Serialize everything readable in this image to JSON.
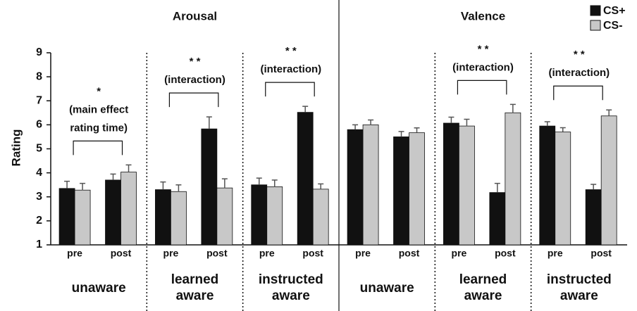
{
  "chart_data": {
    "type": "bar",
    "y_label": "Rating",
    "ylim": [
      1,
      9
    ],
    "yticks": [
      1,
      2,
      3,
      4,
      5,
      6,
      7,
      8,
      9
    ],
    "categories": [
      "pre",
      "post"
    ],
    "series": [
      {
        "name": "CS+",
        "color": "#111111"
      },
      {
        "name": "CS-",
        "color": "#c8c8c8"
      }
    ],
    "sections": [
      {
        "title": "Arousal",
        "panels": [
          {
            "group_label": [
              "unaware"
            ],
            "annotation": [
              "*",
              "(main effect",
              "rating time)"
            ],
            "series": [
              {
                "values": [
                  3.35,
                  3.7
                ],
                "errors": [
                  0.3,
                  0.25
                ]
              },
              {
                "values": [
                  3.28,
                  4.03
                ],
                "errors": [
                  0.28,
                  0.3
                ]
              }
            ]
          },
          {
            "group_label": [
              "learned",
              "aware"
            ],
            "annotation": [
              "* *",
              "(interaction)"
            ],
            "series": [
              {
                "values": [
                  3.3,
                  5.83
                ],
                "errors": [
                  0.32,
                  0.5
                ]
              },
              {
                "values": [
                  3.22,
                  3.37
                ],
                "errors": [
                  0.28,
                  0.38
                ]
              }
            ]
          },
          {
            "group_label": [
              "instructed",
              "aware"
            ],
            "annotation": [
              "* *",
              "(interaction)"
            ],
            "series": [
              {
                "values": [
                  3.5,
                  6.52
                ],
                "errors": [
                  0.28,
                  0.25
                ]
              },
              {
                "values": [
                  3.42,
                  3.32
                ],
                "errors": [
                  0.28,
                  0.22
                ]
              }
            ]
          }
        ]
      },
      {
        "title": "Valence",
        "panels": [
          {
            "group_label": [
              "unaware"
            ],
            "annotation": [],
            "series": [
              {
                "values": [
                  5.8,
                  5.5
                ],
                "errors": [
                  0.2,
                  0.22
                ]
              },
              {
                "values": [
                  6.0,
                  5.67
                ],
                "errors": [
                  0.2,
                  0.2
                ]
              }
            ]
          },
          {
            "group_label": [
              "learned",
              "aware"
            ],
            "annotation": [
              "* *",
              "(interaction)"
            ],
            "series": [
              {
                "values": [
                  6.07,
                  3.18
                ],
                "errors": [
                  0.25,
                  0.38
                ]
              },
              {
                "values": [
                  5.95,
                  6.5
                ],
                "errors": [
                  0.28,
                  0.35
                ]
              }
            ]
          },
          {
            "group_label": [
              "instructed",
              "aware"
            ],
            "annotation": [
              "* *",
              "(interaction)"
            ],
            "series": [
              {
                "values": [
                  5.95,
                  3.3
                ],
                "errors": [
                  0.18,
                  0.22
                ]
              },
              {
                "values": [
                  5.7,
                  6.37
                ],
                "errors": [
                  0.18,
                  0.25
                ]
              }
            ]
          }
        ]
      }
    ]
  }
}
